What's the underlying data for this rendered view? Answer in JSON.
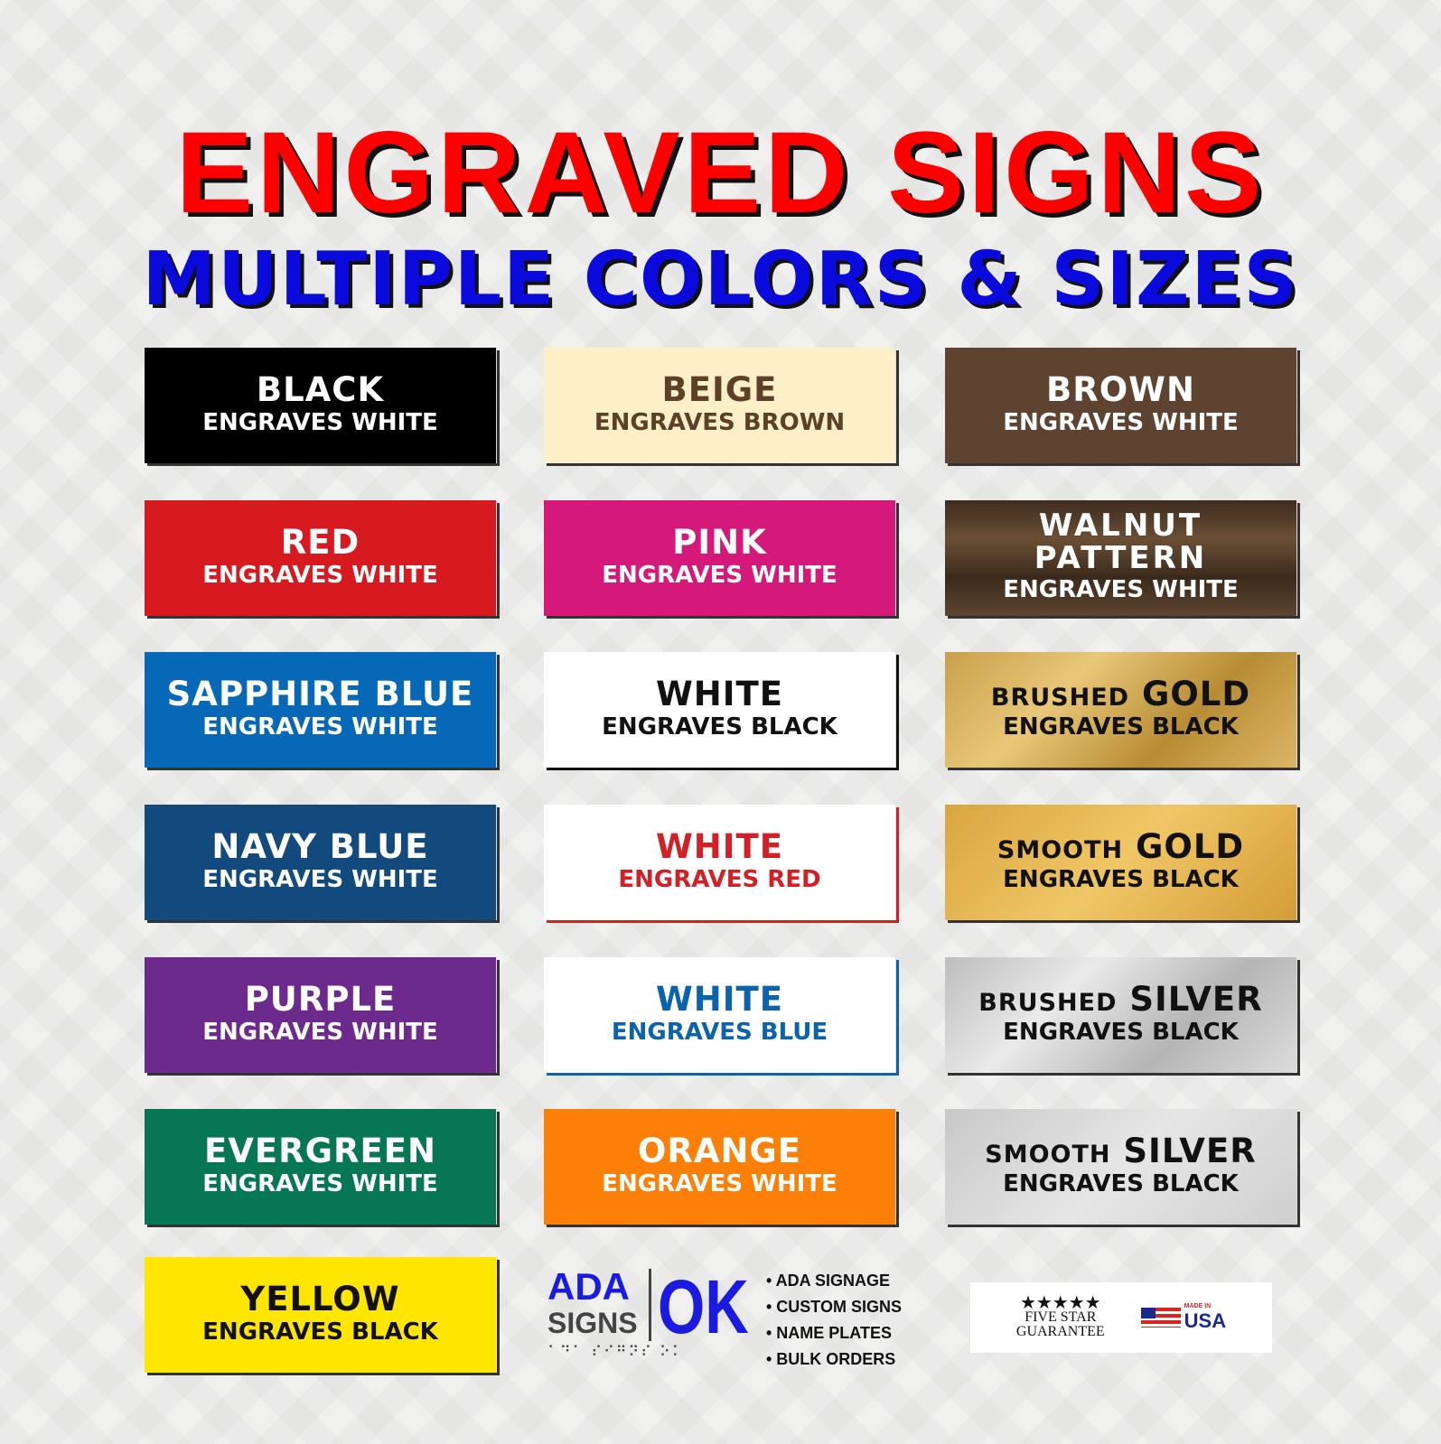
{
  "title": "ENGRAVED SIGNS",
  "subtitle": "MULTIPLE COLORS & SIZES",
  "tiles": [
    {
      "title": "BLACK",
      "sub": "ENGRAVES WHITE",
      "bg": "#000000",
      "fg": "#ffffff"
    },
    {
      "title": "BEIGE",
      "sub": "ENGRAVES BROWN",
      "bg": "#fdf0c8",
      "fg": "#5c4128"
    },
    {
      "title": "BROWN",
      "sub": "ENGRAVES WHITE",
      "bg": "#5e4330",
      "fg": "#ffffff"
    },
    {
      "title": "RED",
      "sub": "ENGRAVES WHITE",
      "bg": "#d71920",
      "fg": "#ffffff"
    },
    {
      "title": "PINK",
      "sub": "ENGRAVES WHITE",
      "bg": "#d5197a",
      "fg": "#ffffff"
    },
    {
      "title": "WALNUT PATTERN",
      "sub": "ENGRAVES WHITE",
      "bg": "linear-gradient(180deg,#3e2c1e,#6a4f35,#3b2a1c,#5c4530)",
      "fg": "#ffffff"
    },
    {
      "title": "SAPPHIRE BLUE",
      "sub": "ENGRAVES WHITE",
      "bg": "#0768b8",
      "fg": "#ffffff"
    },
    {
      "title": "WHITE",
      "sub": "ENGRAVES BLACK",
      "bg": "#ffffff",
      "fg": "#111111"
    },
    {
      "prefix": "BRUSHED",
      "title": "GOLD",
      "sub": "ENGRAVES BLACK",
      "bg": "linear-gradient(135deg,#c9a04a,#e8c878,#b88c35,#dcb665)",
      "fg": "#111111"
    },
    {
      "title": "NAVY BLUE",
      "sub": "ENGRAVES WHITE",
      "bg": "#124a7e",
      "fg": "#ffffff"
    },
    {
      "title": "WHITE",
      "sub": "ENGRAVES RED",
      "bg": "#ffffff",
      "fg": "#d22027"
    },
    {
      "prefix": "SMOOTH",
      "title": "GOLD",
      "sub": "ENGRAVES BLACK",
      "bg": "linear-gradient(135deg,#d9a540,#f0c766,#d49c38)",
      "fg": "#111111"
    },
    {
      "title": "PURPLE",
      "sub": "ENGRAVES WHITE",
      "bg": "#6c2b8c",
      "fg": "#ffffff"
    },
    {
      "title": "WHITE",
      "sub": "ENGRAVES BLUE",
      "bg": "#ffffff",
      "fg": "#0b62ad"
    },
    {
      "prefix": "BRUSHED",
      "title": "SILVER",
      "sub": "ENGRAVES BLACK",
      "bg": "linear-gradient(135deg,#bdbdbd,#eaeaea,#b5b5b5,#dcdcdc)",
      "fg": "#111111"
    },
    {
      "title": "EVERGREEN",
      "sub": "ENGRAVES WHITE",
      "bg": "#067752",
      "fg": "#ffffff"
    },
    {
      "title": "ORANGE",
      "sub": "ENGRAVES WHITE",
      "bg": "#fc7f08",
      "fg": "#ffffff"
    },
    {
      "prefix": "SMOOTH",
      "title": "SILVER",
      "sub": "ENGRAVES BLACK",
      "bg": "linear-gradient(135deg,#c8c8c8,#e6e6e6,#cfcfcf)",
      "fg": "#111111"
    },
    {
      "title": "YELLOW",
      "sub": "ENGRAVES BLACK",
      "bg": "#ffe600",
      "fg": "#111111"
    }
  ],
  "logo": {
    "ada": "ADA",
    "signs": "SIGNS",
    "ok": "OK"
  },
  "services": [
    "• ADA SIGNAGE",
    "• CUSTOM SIGNS",
    "• NAME PLATES",
    "• BULK ORDERS"
  ],
  "badge": {
    "stars": "★★★★★",
    "line1": "FIVE STAR",
    "line2": "GUARANTEE",
    "made_in": "MADE IN",
    "usa": "USA"
  }
}
